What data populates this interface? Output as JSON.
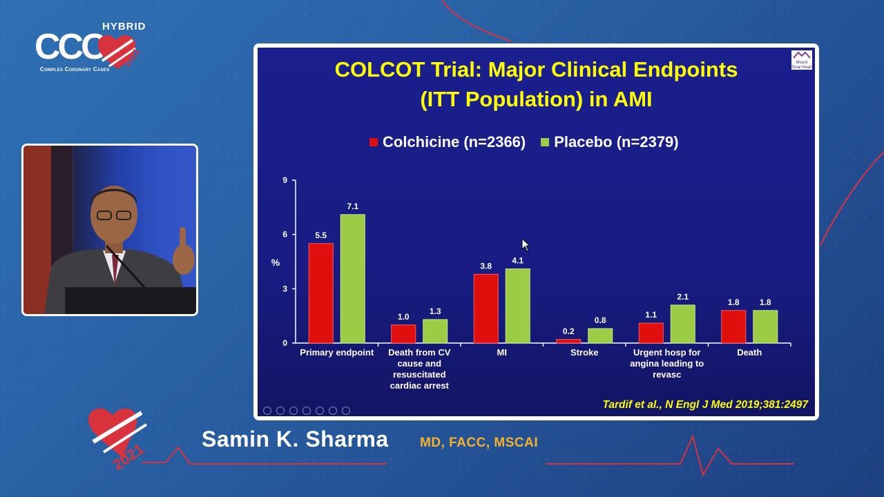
{
  "logo": {
    "hybrid_label": "HYBRID",
    "brand": "CCC",
    "tagline": "Complex Coronary Cases",
    "year": "2021"
  },
  "slide": {
    "title_line1": "COLCOT Trial: Major Clinical Endpoints",
    "title_line2": "(ITT Population) in AMI",
    "legend": [
      {
        "label": "Colchicine (n=2366)",
        "color": "#e10e0e"
      },
      {
        "label": "Placebo (n=2379)",
        "color": "#9ccc45"
      }
    ],
    "citation": "Tardif et al., N Engl J Med 2019;381:2497",
    "institution_logo_text": "Mount Sinai Heart"
  },
  "chart_data": {
    "type": "bar",
    "ylabel": "%",
    "ylim": [
      0,
      9
    ],
    "yticks": [
      "0",
      "3",
      "6",
      "9"
    ],
    "categories": [
      [
        "Primary endpoint"
      ],
      [
        "Death from CV",
        "cause and",
        "resuscitated",
        "cardiac arrest"
      ],
      [
        "MI"
      ],
      [
        "Stroke"
      ],
      [
        "Urgent hosp for",
        "angina leading to",
        "revasc"
      ],
      [
        "Death"
      ]
    ],
    "series": [
      {
        "name": "Colchicine (n=2366)",
        "color": "#e10e0e",
        "values": [
          5.5,
          1.0,
          3.8,
          0.2,
          1.1,
          1.8
        ],
        "labels": [
          "5.5",
          "1.0",
          "3.8",
          "0.2",
          "1.1",
          "1.8"
        ]
      },
      {
        "name": "Placebo (n=2379)",
        "color": "#9ccc45",
        "values": [
          7.1,
          1.3,
          4.1,
          0.8,
          2.1,
          1.8
        ],
        "labels": [
          "7.1",
          "1.3",
          "4.1",
          "0.8",
          "2.1",
          "1.8"
        ]
      }
    ]
  },
  "speaker": {
    "name": "Samin K. Sharma",
    "credentials": "MD, FACC, MSCAI"
  },
  "colors": {
    "accent_red": "#e8232e",
    "credential_gold": "#f5b32a",
    "title_yellow": "#ffff00"
  }
}
